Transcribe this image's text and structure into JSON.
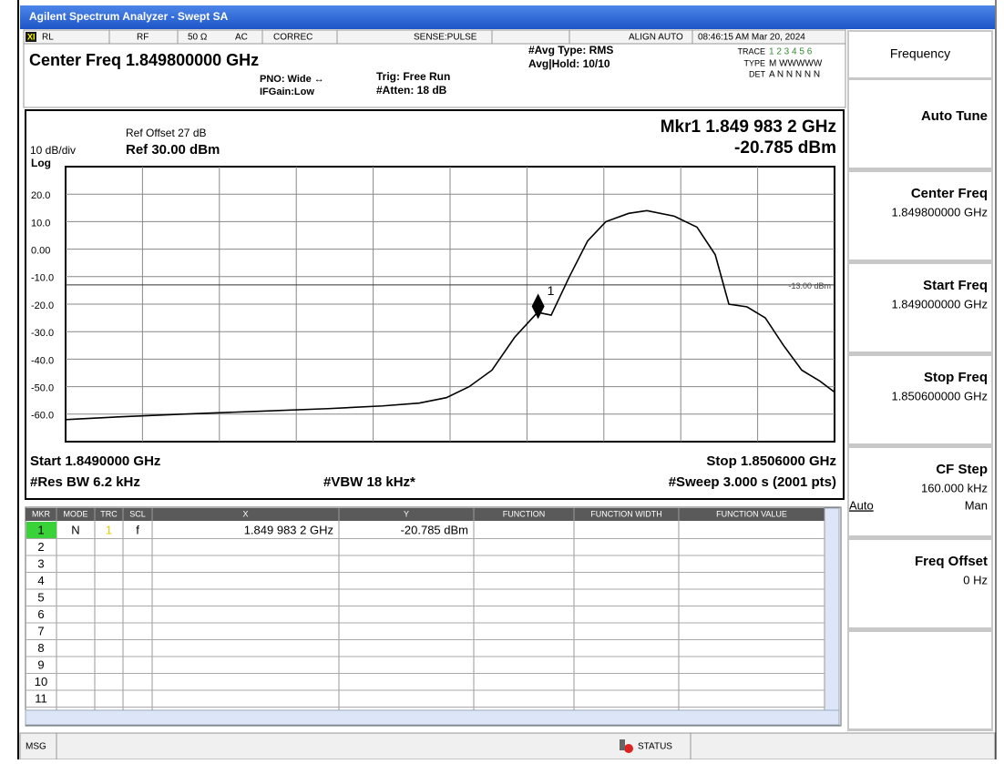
{
  "window": {
    "title": "Agilent Spectrum Analyzer - Swept SA"
  },
  "header": {
    "top": [
      "RL",
      "RF",
      "50 Ω",
      "AC",
      "CORREC",
      "SENSE:PULSE",
      "ALIGN AUTO",
      "08:46:15 AM Mar 20, 2024"
    ],
    "center_freq": "Center Freq 1.849800000 GHz",
    "pno": "PNO: Wide ↔",
    "ifgain": "IFGain:Low",
    "trig": "Trig: Free Run",
    "atten": "#Atten: 18 dB",
    "avg_type": "#Avg Type: RMS",
    "avg_hold": "Avg|Hold: 10/10",
    "trace_label": "TRACE",
    "trace_value": "1 2 3 4 5 6",
    "type_label": "TYPE",
    "type_value": "M WWWWW",
    "det_label": "DET",
    "det_value": "A N N N N N"
  },
  "chart_data": {
    "type": "line",
    "ref_offset": "Ref Offset 27 dB",
    "scale": "10 dB/div",
    "ref_level": "Ref 30.00 dBm",
    "scale_type": "Log",
    "marker_readout": "Mkr1 1.849 983 2 GHz",
    "marker_value": "-20.785 dBm",
    "start": "Start 1.8490000 GHz",
    "stop": "Stop 1.8506000 GHz",
    "rbw": "#Res BW 6.2 kHz",
    "vbw": "#VBW 18 kHz*",
    "sweep": "#Sweep  3.000 s (2001 pts)",
    "xlim": [
      1.849,
      1.8506
    ],
    "ylim": [
      -70,
      30
    ],
    "yticks": [
      {
        "value": 20,
        "label": "20.0"
      },
      {
        "value": 10,
        "label": "10.0"
      },
      {
        "value": 0,
        "label": "0.00"
      },
      {
        "value": -10,
        "label": "-10.0"
      },
      {
        "value": -20,
        "label": "-20.0"
      },
      {
        "value": -30,
        "label": "-30.0"
      },
      {
        "value": -40,
        "label": "-40.0"
      },
      {
        "value": -50,
        "label": "-50.0"
      },
      {
        "value": -60,
        "label": "-60.0"
      }
    ],
    "grid": true,
    "x": [
      1.849,
      1.84911,
      1.8492427,
      1.8493943,
      1.849546,
      1.8496597,
      1.8497355,
      1.8497924,
      1.8498398,
      1.8498872,
      1.8499346,
      1.849982,
      1.8500104,
      1.8500483,
      1.8500863,
      1.8501242,
      1.8501716,
      1.8502095,
      1.8502664,
      1.8503138,
      1.8503517,
      1.8503801,
      1.850418,
      1.8504559,
      1.8504938,
      1.8505318,
      1.8505697,
      1.8506
    ],
    "series": [
      {
        "color": "#000000",
        "values": [
          -62,
          -61,
          -60,
          -59,
          -58,
          -57,
          -56,
          -54,
          -50,
          -44,
          -32,
          -23,
          -24,
          -10,
          3,
          10,
          13,
          14,
          12,
          8,
          -2,
          -20,
          -21,
          -25,
          -35,
          -44,
          -48,
          -52
        ]
      }
    ],
    "display_line": {
      "value": -13,
      "label": "-13.00 dBm"
    },
    "marker": {
      "x": 1.8499832,
      "y": -20.785,
      "label": "1"
    }
  },
  "marker_table": {
    "columns": [
      "MKR",
      "MODE",
      "TRC",
      "SCL",
      "X",
      "Y",
      "FUNCTION",
      "FUNCTION WIDTH",
      "FUNCTION VALUE"
    ],
    "rows": [
      {
        "mkr": "1",
        "mode": "N",
        "trc": "1",
        "scl": "f",
        "x": "1.849 983 2 GHz",
        "y": "-20.785 dBm"
      },
      {
        "mkr": "2"
      },
      {
        "mkr": "3"
      },
      {
        "mkr": "4"
      },
      {
        "mkr": "5"
      },
      {
        "mkr": "6"
      },
      {
        "mkr": "7"
      },
      {
        "mkr": "8"
      },
      {
        "mkr": "9"
      },
      {
        "mkr": "10"
      },
      {
        "mkr": "11"
      }
    ]
  },
  "softkeys": {
    "title": "Frequency",
    "keys": [
      {
        "label": "Auto Tune"
      },
      {
        "label": "Center Freq",
        "value": "1.849800000 GHz"
      },
      {
        "label": "Start Freq",
        "value": "1.849000000 GHz"
      },
      {
        "label": "Stop Freq",
        "value": "1.850600000 GHz"
      },
      {
        "label": "CF Step",
        "value": "160.000 kHz",
        "options": [
          "Auto",
          "Man"
        ]
      },
      {
        "label": "Freq Offset",
        "value": "0 Hz"
      }
    ]
  },
  "status": {
    "msg": "MSG",
    "status": "STATUS"
  }
}
